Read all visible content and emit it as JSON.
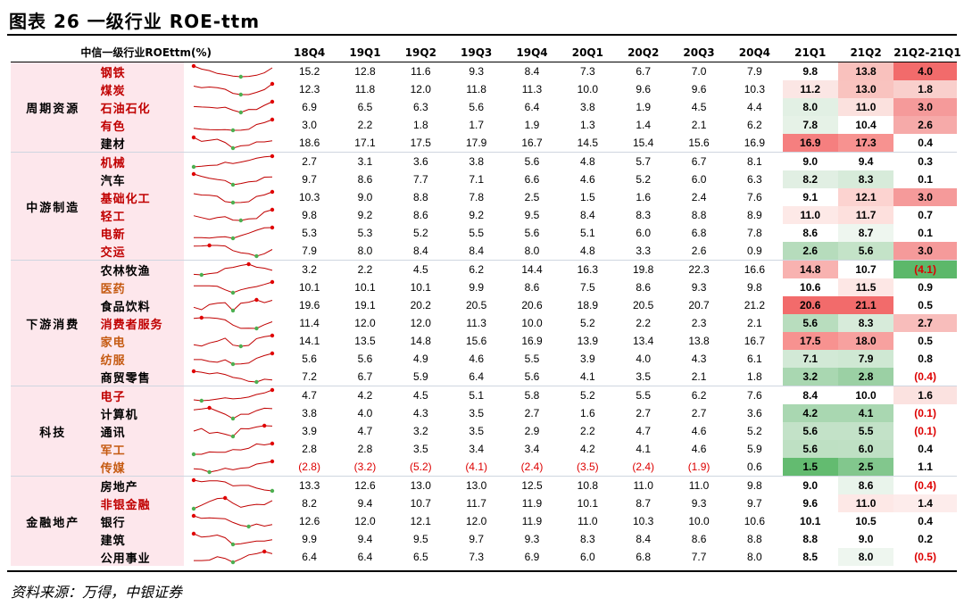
{
  "title": "图表 26 一级行业 ROE-ttm",
  "source": "资料来源：万得，中银证券",
  "headers": [
    "中信一级行业ROEttm(%)",
    "",
    "",
    "18Q4",
    "19Q1",
    "19Q2",
    "19Q3",
    "19Q4",
    "20Q1",
    "20Q2",
    "20Q3",
    "20Q4",
    "21Q1",
    "21Q2",
    "21Q2-21Q1"
  ],
  "groups": [
    {
      "name": "周期资源",
      "rows": [
        0,
        1,
        2,
        3,
        4
      ]
    },
    {
      "name": "中游制造",
      "rows": [
        5,
        6,
        7,
        8,
        9,
        10
      ]
    },
    {
      "name": "下游消费",
      "rows": [
        11,
        12,
        13,
        14,
        15,
        16,
        17
      ]
    },
    {
      "name": "科技",
      "rows": [
        18,
        19,
        20,
        21,
        22
      ]
    },
    {
      "name": "金融地产",
      "rows": [
        23,
        24,
        25,
        26,
        27
      ]
    }
  ],
  "rows": [
    {
      "name": "钢铁",
      "name_color": "#c00000",
      "values": [
        "15.2",
        "12.8",
        "11.6",
        "9.3",
        "8.4",
        "7.3",
        "6.7",
        "7.0",
        "7.9",
        "9.8",
        "13.8",
        "4.0"
      ],
      "raw": [
        15.2,
        12.8,
        11.6,
        9.3,
        8.4,
        7.3,
        6.7,
        7.0,
        7.9,
        9.8,
        13.8
      ],
      "q1bg": "#ffffff",
      "q2bg": "#f9c1bd",
      "dbg": "#f26b6b"
    },
    {
      "name": "煤炭",
      "name_color": "#c00000",
      "values": [
        "12.3",
        "11.8",
        "12.0",
        "11.8",
        "11.3",
        "10.0",
        "9.6",
        "9.6",
        "10.3",
        "11.2",
        "13.0",
        "1.8"
      ],
      "raw": [
        12.3,
        11.8,
        12.0,
        11.8,
        11.3,
        10.0,
        9.6,
        9.6,
        10.3,
        11.2,
        13.0
      ],
      "q1bg": "#fbe6e4",
      "q2bg": "#f9c3bf",
      "dbg": "#f9cfcc"
    },
    {
      "name": "石油石化",
      "name_color": "#c00000",
      "values": [
        "6.9",
        "6.5",
        "6.3",
        "5.6",
        "6.4",
        "3.8",
        "1.9",
        "4.5",
        "4.4",
        "8.0",
        "11.0",
        "3.0"
      ],
      "raw": [
        6.9,
        6.5,
        6.3,
        5.6,
        6.4,
        3.8,
        1.9,
        4.5,
        4.4,
        8.0,
        11.0
      ],
      "q1bg": "#e2f0e4",
      "q2bg": "#fbe1de",
      "dbg": "#f59a9a"
    },
    {
      "name": "有色",
      "name_color": "#c00000",
      "values": [
        "3.0",
        "2.2",
        "1.8",
        "1.7",
        "1.9",
        "1.3",
        "1.4",
        "2.1",
        "6.2",
        "7.8",
        "10.4",
        "2.6"
      ],
      "raw": [
        3.0,
        2.2,
        1.8,
        1.7,
        1.9,
        1.3,
        1.4,
        2.1,
        6.2,
        7.8,
        10.4
      ],
      "q1bg": "#e6f2e7",
      "q2bg": "#ffffff",
      "dbg": "#f6aaa9"
    },
    {
      "name": "建材",
      "name_color": "#000000",
      "values": [
        "18.6",
        "17.1",
        "17.5",
        "17.9",
        "16.7",
        "14.5",
        "15.4",
        "15.6",
        "16.9",
        "16.9",
        "17.3",
        "0.4"
      ],
      "raw": [
        18.6,
        17.1,
        17.5,
        17.9,
        16.7,
        14.5,
        15.4,
        15.6,
        16.9,
        16.9,
        17.3
      ],
      "q1bg": "#f57f7f",
      "q2bg": "#f79290",
      "dbg": "#ffffff"
    },
    {
      "name": "机械",
      "name_color": "#c00000",
      "values": [
        "2.7",
        "3.1",
        "3.6",
        "3.8",
        "5.6",
        "4.8",
        "5.7",
        "6.7",
        "8.1",
        "9.0",
        "9.4",
        "0.3"
      ],
      "raw": [
        2.7,
        3.1,
        3.6,
        3.8,
        5.6,
        4.8,
        5.7,
        6.7,
        8.1,
        9.0,
        9.4
      ],
      "q1bg": "#ffffff",
      "q2bg": "#ffffff",
      "dbg": "#ffffff"
    },
    {
      "name": "汽车",
      "name_color": "#000000",
      "values": [
        "9.7",
        "8.6",
        "7.7",
        "7.1",
        "6.6",
        "4.6",
        "5.2",
        "6.0",
        "6.3",
        "8.2",
        "8.3",
        "0.1"
      ],
      "raw": [
        9.7,
        8.6,
        7.7,
        7.1,
        6.6,
        4.6,
        5.2,
        6.0,
        6.3,
        8.2,
        8.3
      ],
      "q1bg": "#e1efe3",
      "q2bg": "#d7ebda",
      "dbg": "#ffffff"
    },
    {
      "name": "基础化工",
      "name_color": "#c00000",
      "values": [
        "10.3",
        "9.0",
        "8.8",
        "7.8",
        "2.5",
        "1.5",
        "1.6",
        "2.4",
        "7.6",
        "9.1",
        "12.1",
        "3.0"
      ],
      "raw": [
        10.3,
        9.0,
        8.8,
        7.8,
        2.5,
        1.5,
        1.6,
        2.4,
        7.6,
        9.1,
        12.1
      ],
      "q1bg": "#ffffff",
      "q2bg": "#fcd3d0",
      "dbg": "#f59a9a"
    },
    {
      "name": "轻工",
      "name_color": "#c00000",
      "values": [
        "9.8",
        "9.2",
        "8.6",
        "9.2",
        "9.5",
        "8.4",
        "8.3",
        "8.8",
        "8.9",
        "11.0",
        "11.7",
        "0.7"
      ],
      "raw": [
        9.8,
        9.2,
        8.6,
        9.2,
        9.5,
        8.4,
        8.3,
        8.8,
        8.9,
        11.0,
        11.7
      ],
      "q1bg": "#fde9e7",
      "q2bg": "#fde0dd",
      "dbg": "#ffffff"
    },
    {
      "name": "电新",
      "name_color": "#c00000",
      "values": [
        "5.3",
        "5.3",
        "5.2",
        "5.5",
        "5.6",
        "5.1",
        "6.0",
        "6.8",
        "7.8",
        "8.6",
        "8.7",
        "0.1"
      ],
      "raw": [
        5.3,
        5.3,
        5.2,
        5.5,
        5.6,
        5.1,
        6.0,
        6.8,
        7.8,
        8.6,
        8.7
      ],
      "q1bg": "#ffffff",
      "q2bg": "#eef6ef",
      "dbg": "#ffffff"
    },
    {
      "name": "交运",
      "name_color": "#c00000",
      "values": [
        "7.9",
        "8.0",
        "8.4",
        "8.4",
        "8.0",
        "4.8",
        "3.3",
        "2.6",
        "0.9",
        "2.6",
        "5.6",
        "3.0"
      ],
      "raw": [
        7.9,
        8.0,
        8.4,
        8.4,
        8.0,
        4.8,
        3.3,
        2.6,
        0.9,
        2.6,
        5.6
      ],
      "q1bg": "#b6dcbc",
      "q2bg": "#c4e3c8",
      "dbg": "#f59a9a"
    },
    {
      "name": "农林牧渔",
      "name_color": "#000000",
      "values": [
        "3.2",
        "2.2",
        "4.5",
        "6.2",
        "14.4",
        "16.3",
        "19.8",
        "22.3",
        "16.6",
        "14.8",
        "10.7",
        "(4.1)"
      ],
      "raw": [
        3.2,
        2.2,
        4.5,
        6.2,
        14.4,
        16.3,
        19.8,
        22.3,
        16.6,
        14.8,
        10.7
      ],
      "q1bg": "#f8b2b0",
      "q2bg": "#ffffff",
      "dbg": "#5cb86a"
    },
    {
      "name": "医药",
      "name_color": "#c55a11",
      "values": [
        "10.1",
        "10.1",
        "10.1",
        "9.9",
        "8.6",
        "7.5",
        "8.6",
        "9.3",
        "9.8",
        "10.6",
        "11.5",
        "0.9"
      ],
      "raw": [
        10.1,
        10.1,
        10.1,
        9.9,
        8.6,
        7.5,
        8.6,
        9.3,
        9.8,
        10.6,
        11.5
      ],
      "q1bg": "#ffffff",
      "q2bg": "#fde7e5",
      "dbg": "#ffffff"
    },
    {
      "name": "食品饮料",
      "name_color": "#000000",
      "values": [
        "19.6",
        "19.1",
        "20.2",
        "20.5",
        "20.6",
        "18.9",
        "20.5",
        "20.7",
        "21.2",
        "20.6",
        "21.1",
        "0.5"
      ],
      "raw": [
        19.6,
        19.1,
        20.2,
        20.5,
        20.6,
        18.9,
        20.5,
        20.7,
        21.2,
        20.6,
        21.1
      ],
      "q1bg": "#f26b6b",
      "q2bg": "#f26b6b",
      "dbg": "#ffffff"
    },
    {
      "name": "消费者服务",
      "name_color": "#c00000",
      "values": [
        "11.4",
        "12.0",
        "12.0",
        "11.3",
        "10.0",
        "5.2",
        "2.2",
        "2.3",
        "2.1",
        "5.6",
        "8.3",
        "2.7"
      ],
      "raw": [
        11.4,
        12.0,
        12.0,
        11.3,
        10.0,
        5.2,
        2.2,
        2.3,
        2.1,
        5.6,
        8.3
      ],
      "q1bg": "#b8ddbe",
      "q2bg": "#d7ebda",
      "dbg": "#f8bdbb"
    },
    {
      "name": "家电",
      "name_color": "#c55a11",
      "values": [
        "14.1",
        "13.5",
        "14.8",
        "15.6",
        "16.9",
        "13.9",
        "13.4",
        "13.8",
        "16.7",
        "17.5",
        "18.0",
        "0.5"
      ],
      "raw": [
        14.1,
        13.5,
        14.8,
        15.6,
        16.9,
        13.9,
        13.4,
        13.8,
        16.7,
        17.5,
        18.0
      ],
      "q1bg": "#f79290",
      "q2bg": "#f7a19f",
      "dbg": "#ffffff"
    },
    {
      "name": "纺服",
      "name_color": "#c55a11",
      "values": [
        "5.6",
        "5.6",
        "4.9",
        "4.6",
        "5.5",
        "3.9",
        "4.0",
        "4.3",
        "6.1",
        "7.1",
        "7.9",
        "0.8"
      ],
      "raw": [
        5.6,
        5.6,
        4.9,
        4.6,
        5.5,
        3.9,
        4.0,
        4.3,
        6.1,
        7.1,
        7.9
      ],
      "q1bg": "#d2e9d6",
      "q2bg": "#cfe8d3",
      "dbg": "#ffffff"
    },
    {
      "name": "商贸零售",
      "name_color": "#000000",
      "values": [
        "7.2",
        "6.7",
        "5.9",
        "6.4",
        "5.6",
        "4.1",
        "3.5",
        "2.1",
        "1.8",
        "3.2",
        "2.8",
        "(0.4)"
      ],
      "raw": [
        7.2,
        6.7,
        5.9,
        6.4,
        5.6,
        4.1,
        3.5,
        2.1,
        1.8,
        3.2,
        2.8
      ],
      "q1bg": "#a9d7b1",
      "q2bg": "#9bd0a4",
      "dbg": "#ffffff"
    },
    {
      "name": "电子",
      "name_color": "#c00000",
      "values": [
        "4.7",
        "4.2",
        "4.5",
        "5.1",
        "5.8",
        "5.2",
        "5.5",
        "6.2",
        "7.6",
        "8.4",
        "10.0",
        "1.6"
      ],
      "raw": [
        4.7,
        4.2,
        4.5,
        5.1,
        5.8,
        5.2,
        5.5,
        6.2,
        7.6,
        8.4,
        10.0
      ],
      "q1bg": "#ffffff",
      "q2bg": "#ffffff",
      "dbg": "#fbe2e0"
    },
    {
      "name": "计算机",
      "name_color": "#000000",
      "values": [
        "3.8",
        "4.0",
        "4.3",
        "3.5",
        "2.7",
        "1.6",
        "2.7",
        "2.7",
        "3.6",
        "4.2",
        "4.1",
        "(0.1)"
      ],
      "raw": [
        3.8,
        4.0,
        4.3,
        3.5,
        2.7,
        1.6,
        2.7,
        2.7,
        3.6,
        4.2,
        4.1
      ],
      "q1bg": "#a9d7b1",
      "q2bg": "#a9d7b1",
      "dbg": "#ffffff"
    },
    {
      "name": "通讯",
      "name_color": "#000000",
      "values": [
        "3.9",
        "4.7",
        "3.2",
        "3.5",
        "2.9",
        "2.2",
        "4.7",
        "4.6",
        "5.2",
        "5.6",
        "5.5",
        "(0.1)"
      ],
      "raw": [
        3.9,
        4.7,
        3.2,
        3.5,
        2.9,
        2.2,
        4.7,
        4.6,
        5.2,
        5.6,
        5.5
      ],
      "q1bg": "#c3e2c8",
      "q2bg": "#c3e2c8",
      "dbg": "#ffffff"
    },
    {
      "name": "军工",
      "name_color": "#c55a11",
      "values": [
        "2.8",
        "2.8",
        "3.5",
        "3.4",
        "3.4",
        "4.2",
        "4.1",
        "4.6",
        "5.9",
        "5.6",
        "6.0",
        "0.4"
      ],
      "raw": [
        2.8,
        2.8,
        3.5,
        3.4,
        3.4,
        4.2,
        4.1,
        4.6,
        5.9,
        5.6,
        6.0
      ],
      "q1bg": "#bee0c3",
      "q2bg": "#bfe0c4",
      "dbg": "#ffffff"
    },
    {
      "name": "传媒",
      "name_color": "#c55a11",
      "values": [
        "(2.8)",
        "(3.2)",
        "(5.2)",
        "(4.1)",
        "(2.4)",
        "(3.5)",
        "(2.4)",
        "(1.9)",
        "0.6",
        "1.5",
        "2.5",
        "1.1"
      ],
      "raw": [
        -2.8,
        -3.2,
        -5.2,
        -4.1,
        -2.4,
        -3.5,
        -2.4,
        -1.9,
        0.6,
        1.5,
        2.5
      ],
      "q1bg": "#63bb70",
      "q2bg": "#82c78d",
      "dbg": "#ffffff"
    },
    {
      "name": "房地产",
      "name_color": "#000000",
      "values": [
        "13.3",
        "12.6",
        "13.0",
        "13.0",
        "12.5",
        "10.8",
        "11.0",
        "11.0",
        "9.8",
        "9.0",
        "8.6",
        "(0.4)"
      ],
      "raw": [
        13.3,
        12.6,
        13.0,
        13.0,
        12.5,
        10.8,
        11.0,
        11.0,
        9.8,
        9.0,
        8.6
      ],
      "q1bg": "#ffffff",
      "q2bg": "#e9f4eb",
      "dbg": "#ffffff"
    },
    {
      "name": "非银金融",
      "name_color": "#c00000",
      "values": [
        "8.2",
        "9.4",
        "10.7",
        "11.7",
        "11.9",
        "10.1",
        "8.7",
        "9.3",
        "9.7",
        "9.6",
        "11.0",
        "1.4"
      ],
      "raw": [
        8.2,
        9.4,
        10.7,
        11.7,
        11.9,
        10.1,
        8.7,
        9.3,
        9.7,
        9.6,
        11.0
      ],
      "q1bg": "#ffffff",
      "q2bg": "#fde8e6",
      "dbg": "#fdeceb"
    },
    {
      "name": "银行",
      "name_color": "#000000",
      "values": [
        "12.6",
        "12.0",
        "12.1",
        "12.0",
        "11.9",
        "11.0",
        "10.3",
        "10.0",
        "10.6",
        "10.1",
        "10.5",
        "0.4"
      ],
      "raw": [
        12.6,
        12.0,
        12.1,
        12.0,
        11.9,
        11.0,
        10.3,
        10.0,
        10.6,
        10.1,
        10.5
      ],
      "q1bg": "#ffffff",
      "q2bg": "#ffffff",
      "dbg": "#ffffff"
    },
    {
      "name": "建筑",
      "name_color": "#000000",
      "values": [
        "9.9",
        "9.4",
        "9.5",
        "9.7",
        "9.3",
        "8.3",
        "8.4",
        "8.6",
        "8.8",
        "8.8",
        "9.0",
        "0.2"
      ],
      "raw": [
        9.9,
        9.4,
        9.5,
        9.7,
        9.3,
        8.3,
        8.4,
        8.6,
        8.8,
        8.8,
        9.0
      ],
      "q1bg": "#ffffff",
      "q2bg": "#ffffff",
      "dbg": "#ffffff"
    },
    {
      "name": "公用事业",
      "name_color": "#000000",
      "values": [
        "6.4",
        "6.4",
        "6.5",
        "7.3",
        "6.9",
        "6.0",
        "6.8",
        "7.7",
        "8.0",
        "8.5",
        "8.0",
        "(0.5)"
      ],
      "raw": [
        6.4,
        6.4,
        6.5,
        7.3,
        6.9,
        6.0,
        6.8,
        7.7,
        8.0,
        8.5,
        8.0
      ],
      "q1bg": "#ffffff",
      "q2bg": "#eef6ef",
      "dbg": "#ffffff"
    }
  ]
}
